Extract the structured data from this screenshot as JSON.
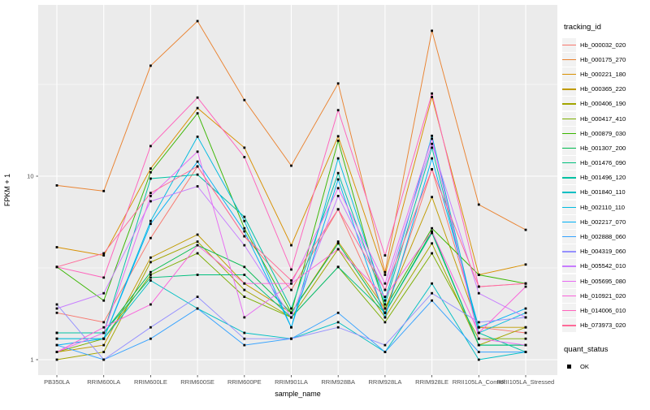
{
  "chart_data": {
    "type": "line",
    "title": "",
    "xlabel": "sample_name",
    "ylabel": "FPKM + 1",
    "yscale": "log10",
    "ylim": [
      0.82,
      86
    ],
    "yticks": [
      {
        "value": 1,
        "label": "1"
      },
      {
        "value": 10,
        "label": "10"
      }
    ],
    "yminor_gridlines": [
      3.1623,
      31.623
    ],
    "grid": "on",
    "panel_bg": "#EBEBEB",
    "grid_color": "#FFFFFF",
    "point_marker": "black-square",
    "categories": [
      "PB350LA",
      "RRIM600LA",
      "RRIM600LE",
      "RRIM600SE",
      "RRIM600PE",
      "RRIM901LA",
      "RRIM928BA",
      "RRIM928LA",
      "RRIM928LE",
      "RRII105LA_Control",
      "RRII105LA_Stressed"
    ],
    "legend": {
      "title": "tracking_id",
      "position": "right"
    },
    "quant_legend": {
      "title": "quant_status",
      "items": [
        {
          "label": "OK",
          "marker": "black-square"
        }
      ]
    },
    "series": [
      {
        "name": "Hb_000032_020",
        "color": "#F8766D",
        "values": [
          1.8,
          1.6,
          4.6,
          11.3,
          4.7,
          2.4,
          6.6,
          1.8,
          10.9,
          1.5,
          1.4
        ]
      },
      {
        "name": "Hb_000175_270",
        "color": "#EA8331",
        "values": [
          8.9,
          8.3,
          40,
          70,
          26,
          11.4,
          32,
          3.0,
          62,
          7.0,
          5.1
        ]
      },
      {
        "name": "Hb_000221_180",
        "color": "#D89000",
        "values": [
          4.1,
          3.7,
          11,
          23.5,
          14.3,
          4.2,
          16.5,
          2.9,
          27,
          2.9,
          3.3
        ]
      },
      {
        "name": "Hb_000365_220",
        "color": "#C09B00",
        "values": [
          1.1,
          1.2,
          3.6,
          4.8,
          2.6,
          1.8,
          4.4,
          1.9,
          7.7,
          1.5,
          1.5
        ]
      },
      {
        "name": "Hb_000406_190",
        "color": "#A3A500",
        "values": [
          1.0,
          1.1,
          3.4,
          4.4,
          2.4,
          1.7,
          4.0,
          1.7,
          4.3,
          1.2,
          1.5
        ]
      },
      {
        "name": "Hb_000417_410",
        "color": "#7CAE00",
        "values": [
          1.1,
          1.3,
          2.9,
          3.8,
          2.2,
          1.7,
          3.2,
          1.6,
          3.8,
          1.3,
          1.3
        ]
      },
      {
        "name": "Hb_000879_030",
        "color": "#39B600",
        "values": [
          3.2,
          2.1,
          10.5,
          22,
          5.2,
          1.8,
          15.6,
          1.9,
          5.2,
          2.9,
          2.6
        ]
      },
      {
        "name": "Hb_001307_200",
        "color": "#00BB4E",
        "values": [
          1.4,
          1.4,
          3.0,
          4.2,
          3.2,
          1.8,
          4.3,
          1.8,
          5.0,
          1.2,
          1.2
        ]
      },
      {
        "name": "Hb_001476_090",
        "color": "#00BF7D",
        "values": [
          1.4,
          1.4,
          2.8,
          2.9,
          2.9,
          1.7,
          3.2,
          1.8,
          4.9,
          1.2,
          1.2
        ]
      },
      {
        "name": "Hb_001496_120",
        "color": "#00C1A3",
        "values": [
          1.4,
          1.4,
          9.7,
          10.2,
          6.0,
          1.9,
          10.4,
          2.0,
          14.3,
          1.4,
          1.1
        ]
      },
      {
        "name": "Hb_001840_110",
        "color": "#00BFC4",
        "values": [
          1.3,
          1.3,
          2.7,
          1.9,
          1.4,
          1.3,
          1.6,
          1.1,
          2.6,
          1.0,
          1.1
        ]
      },
      {
        "name": "Hb_002110_110",
        "color": "#00BAE0",
        "values": [
          1.3,
          1.3,
          5.7,
          16.4,
          5.7,
          1.5,
          12.5,
          2.1,
          16.6,
          1.4,
          1.8
        ]
      },
      {
        "name": "Hb_002217_070",
        "color": "#00B0F6",
        "values": [
          1.2,
          1.3,
          5.5,
          12,
          5.0,
          1.5,
          9.6,
          1.7,
          12.5,
          1.5,
          1.9
        ]
      },
      {
        "name": "Hb_002888_060",
        "color": "#35A2FF",
        "values": [
          1.2,
          1.0,
          1.3,
          1.9,
          1.2,
          1.3,
          1.8,
          1.1,
          2.1,
          1.1,
          1.1
        ]
      },
      {
        "name": "Hb_004319_060",
        "color": "#9590FF",
        "values": [
          2.0,
          1.0,
          1.5,
          2.2,
          1.3,
          1.3,
          1.5,
          1.2,
          2.3,
          1.6,
          1.7
        ]
      },
      {
        "name": "Hb_005542_010",
        "color": "#C77CFF",
        "values": [
          1.9,
          2.3,
          7.3,
          8.8,
          4.2,
          1.7,
          7.8,
          2.4,
          15,
          2.3,
          1.7
        ]
      },
      {
        "name": "Hb_005695_080",
        "color": "#E76BF3",
        "values": [
          1.1,
          1.4,
          7.8,
          13.6,
          1.7,
          2.6,
          8.6,
          2.6,
          16,
          1.3,
          1.2
        ]
      },
      {
        "name": "Hb_010921_020",
        "color": "#FA62DB",
        "values": [
          1.1,
          1.5,
          2.0,
          4.2,
          2.6,
          2.6,
          4.0,
          2.2,
          5.0,
          1.4,
          2.5
        ]
      },
      {
        "name": "Hb_014006_010",
        "color": "#FF62BC",
        "values": [
          3.2,
          2.8,
          14.6,
          26.8,
          12.7,
          3.1,
          22.9,
          3.7,
          28.2,
          2.5,
          2.6
        ]
      },
      {
        "name": "Hb_073973_020",
        "color": "#FF6A98",
        "values": [
          3.2,
          3.8,
          8.1,
          11.3,
          4.7,
          2.7,
          6.6,
          2.4,
          10.9,
          2.5,
          2.6
        ]
      }
    ]
  }
}
